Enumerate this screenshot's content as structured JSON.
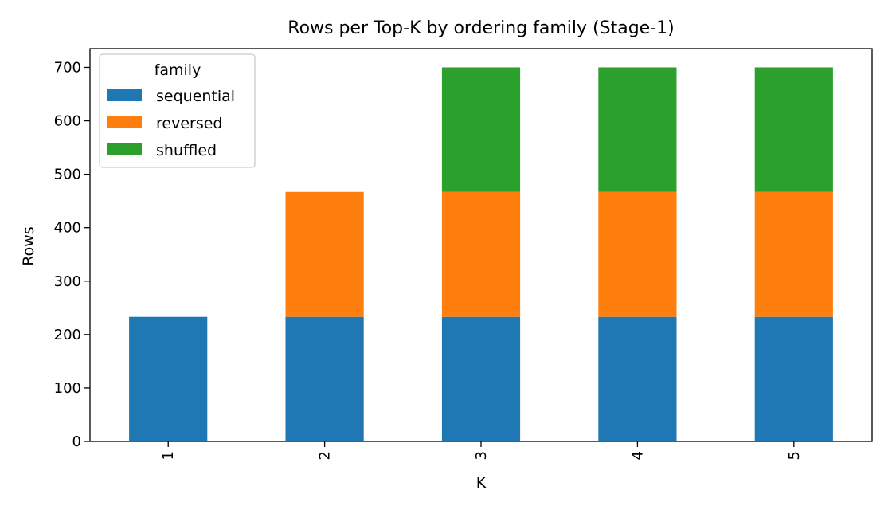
{
  "chart_data": {
    "type": "bar",
    "stacked": true,
    "title": "Rows per Top-K by ordering family (Stage-1)",
    "xlabel": "K",
    "ylabel": "Rows",
    "categories": [
      "1",
      "2",
      "3",
      "4",
      "5"
    ],
    "series": [
      {
        "name": "sequential",
        "color": "#1f77b4",
        "values": [
          233,
          233,
          233,
          233,
          233
        ]
      },
      {
        "name": "reversed",
        "color": "#ff7f0e",
        "values": [
          0,
          234,
          234,
          234,
          234
        ]
      },
      {
        "name": "shuffled",
        "color": "#2ca02c",
        "values": [
          0,
          0,
          233,
          233,
          233
        ]
      }
    ],
    "ylim": [
      0,
      735
    ],
    "yticks": [
      0,
      100,
      200,
      300,
      400,
      500,
      600,
      700
    ],
    "xtick_rotation": "vertical",
    "grid": false,
    "legend": {
      "title": "family",
      "position": "top-left"
    }
  }
}
